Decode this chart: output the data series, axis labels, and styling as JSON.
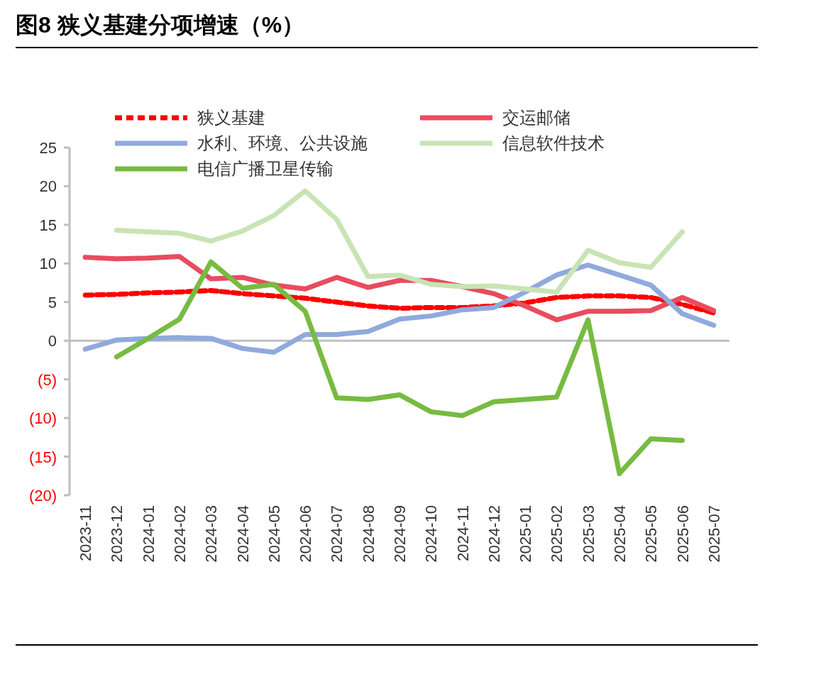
{
  "chart_data": {
    "type": "line",
    "title": "图8  狭义基建分项增速（%）",
    "categories": [
      "2023-11",
      "2023-12",
      "2024-01",
      "2024-02",
      "2024-03",
      "2024-04",
      "2024-05",
      "2024-06",
      "2024-07",
      "2024-08",
      "2024-09",
      "2024-10",
      "2024-11",
      "2024-12",
      "2025-01",
      "2025-02",
      "2025-03",
      "2025-04",
      "2025-05",
      "2025-06",
      "2025-07"
    ],
    "series": [
      {
        "name": "狭义基建",
        "color": "#ff0000",
        "line_style": "dashed",
        "values": [
          5.9,
          6.0,
          6.2,
          6.3,
          6.5,
          6.1,
          5.8,
          5.5,
          5.0,
          4.5,
          4.2,
          4.3,
          4.3,
          4.5,
          4.9,
          5.6,
          5.8,
          5.8,
          5.6,
          4.7,
          3.6
        ]
      },
      {
        "name": "交运邮储",
        "color": "#e84c5e",
        "values": [
          10.8,
          10.6,
          10.7,
          10.9,
          8.0,
          8.2,
          7.2,
          6.7,
          8.2,
          6.9,
          7.8,
          7.8,
          7.0,
          6.1,
          4.5,
          2.7,
          3.8,
          3.8,
          3.9,
          5.6,
          3.9
        ]
      },
      {
        "name": "水利、环境、公共设施",
        "color": "#8faadc",
        "values": [
          -1.1,
          0.1,
          0.3,
          0.4,
          0.3,
          -1.0,
          -1.5,
          0.8,
          0.8,
          1.2,
          2.8,
          3.2,
          4.0,
          4.3,
          6.3,
          8.5,
          9.8,
          8.5,
          7.2,
          3.5,
          2.0
        ]
      },
      {
        "name": "信息软件技术",
        "color": "#c9e4b4",
        "values": [
          null,
          14.3,
          14.1,
          13.9,
          12.9,
          14.2,
          16.2,
          19.4,
          15.7,
          8.3,
          8.5,
          7.3,
          7.0,
          7.1,
          6.7,
          6.3,
          11.7,
          10.1,
          9.5,
          14.1,
          null
        ]
      },
      {
        "name": "电信广播卫星传输",
        "color": "#77bb41",
        "values": [
          null,
          -2.1,
          0.3,
          2.8,
          10.2,
          6.8,
          7.3,
          3.8,
          -7.4,
          -7.6,
          -7.0,
          -9.2,
          -9.7,
          -7.9,
          -7.6,
          -7.3,
          2.7,
          -17.2,
          -12.7,
          -12.9,
          null
        ]
      }
    ],
    "ylim": [
      -20,
      25
    ],
    "yticks": [
      {
        "value": -20,
        "label": "(20)"
      },
      {
        "value": -15,
        "label": "(15)"
      },
      {
        "value": -10,
        "label": "(10)"
      },
      {
        "value": -5,
        "label": "(5)"
      },
      0,
      5,
      10,
      15,
      20,
      25
    ],
    "legend": "top",
    "line_style": "solid",
    "marker": "none"
  }
}
